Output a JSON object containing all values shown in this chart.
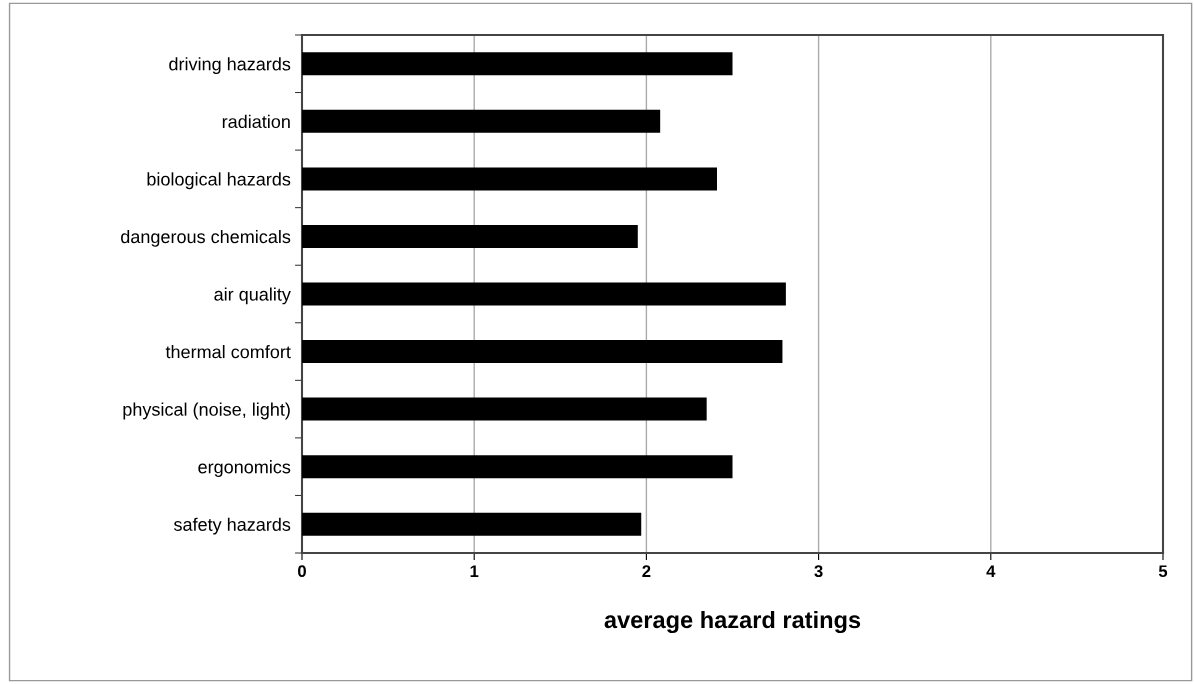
{
  "chart_data": {
    "type": "bar",
    "orientation": "horizontal",
    "xlabel": "average hazard ratings",
    "categories": [
      "driving hazards",
      "radiation",
      "biological hazards",
      "dangerous chemicals",
      "air quality",
      "thermal comfort",
      "physical (noise, light)",
      "ergonomics",
      "safety hazards"
    ],
    "values": [
      2.5,
      2.08,
      2.41,
      1.95,
      2.81,
      2.79,
      2.35,
      2.5,
      1.97
    ],
    "color": "#000000",
    "xlim": [
      0,
      5
    ],
    "xticks": [
      0,
      1,
      2,
      3,
      4,
      5
    ],
    "grid": "x",
    "legend": false
  }
}
